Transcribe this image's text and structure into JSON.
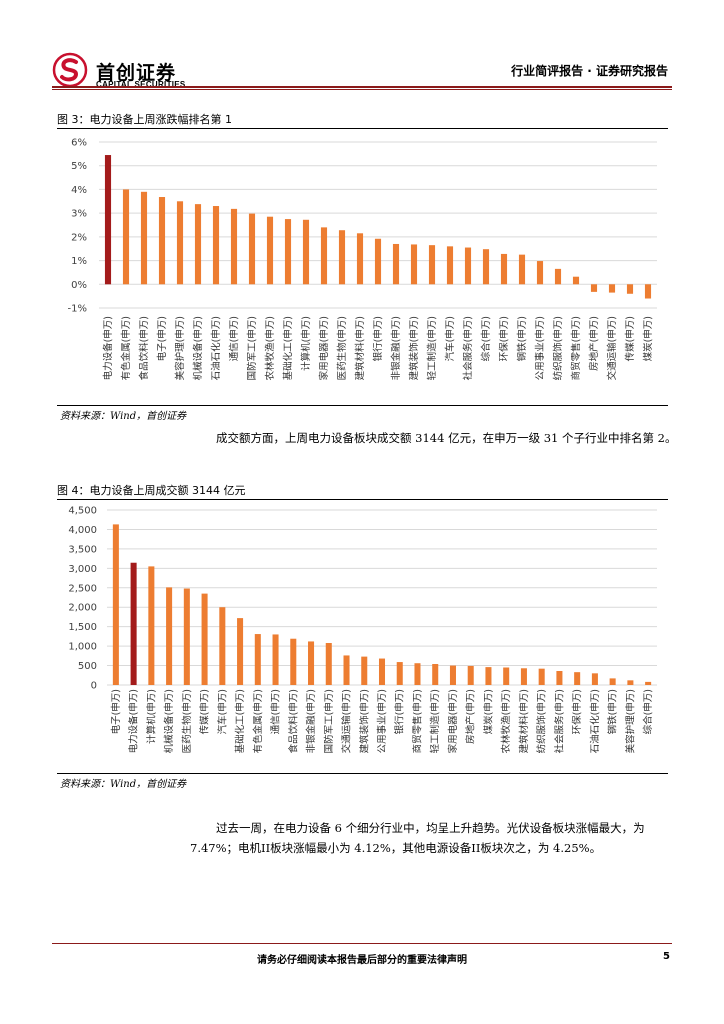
{
  "header": {
    "logo_cn": "首创证券",
    "logo_en": "CAPITAL SECURITIES",
    "report_type": "行业简评报告 · 证券研究报告"
  },
  "figure3": {
    "title": "图 3：电力设备上周涨跌幅排名第 1",
    "source": "资料来源：Wind，首创证券"
  },
  "paragraph1": "成交额方面，上周电力设备板块成交额 3144 亿元，在申万一级 31 个子行业中排名第 2。",
  "figure4": {
    "title": "图 4：电力设备上周成交额 3144 亿元",
    "source": "资料来源：Wind，首创证券"
  },
  "paragraph2": "过去一周，在电力设备 6 个细分行业中，均呈上升趋势。光伏设备板块涨幅最大，为 7.47%；电机II板块涨幅最小为 4.12%，其他电源设备II板块次之，为 4.25%。",
  "footer": {
    "disclaimer": "请务必仔细阅读本报告最后部分的重要法律声明",
    "page": "5"
  },
  "colors": {
    "highlight": "#a31b1b",
    "bar": "#ed7d31",
    "brand": "#c8102e"
  },
  "chart_data": [
    {
      "type": "bar",
      "title": "图 3：电力设备上周涨跌幅排名第 1",
      "categories": [
        "电力设备(申万)",
        "有色金属(申万)",
        "食品饮料(申万)",
        "电子(申万)",
        "美容护理(申万)",
        "机械设备(申万)",
        "石油石化(申万)",
        "通信(申万)",
        "国防军工(申万)",
        "农林牧渔(申万)",
        "基础化工(申万)",
        "计算机(申万)",
        "家用电器(申万)",
        "医药生物(申万)",
        "建筑材料(申万)",
        "银行(申万)",
        "非银金融(申万)",
        "建筑装饰(申万)",
        "轻工制造(申万)",
        "汽车(申万)",
        "社会服务(申万)",
        "综合(申万)",
        "环保(申万)",
        "钢铁(申万)",
        "公用事业(申万)",
        "纺织服饰(申万)",
        "商贸零售(申万)",
        "房地产(申万)",
        "交通运输(申万)",
        "传媒(申万)",
        "煤炭(申万)"
      ],
      "values": [
        5.45,
        4.0,
        3.9,
        3.68,
        3.5,
        3.38,
        3.3,
        3.18,
        2.98,
        2.85,
        2.75,
        2.72,
        2.4,
        2.28,
        2.15,
        1.92,
        1.7,
        1.68,
        1.65,
        1.6,
        1.55,
        1.48,
        1.28,
        1.25,
        0.98,
        0.65,
        0.32,
        -0.32,
        -0.35,
        -0.4,
        -0.6
      ],
      "highlight_index": 0,
      "y_ticks": [
        "6%",
        "5%",
        "4%",
        "3%",
        "2%",
        "1%",
        "0%",
        "-1%"
      ],
      "ylim": [
        -1,
        6
      ],
      "unit": "%"
    },
    {
      "type": "bar",
      "title": "图 4：电力设备上周成交额 3144 亿元",
      "categories": [
        "电子(申万)",
        "电力设备(申万)",
        "计算机(申万)",
        "机械设备(申万)",
        "医药生物(申万)",
        "传媒(申万)",
        "汽车(申万)",
        "基础化工(申万)",
        "有色金属(申万)",
        "通信(申万)",
        "食品饮料(申万)",
        "非银金融(申万)",
        "国防军工(申万)",
        "交通运输(申万)",
        "建筑装饰(申万)",
        "公用事业(申万)",
        "银行(申万)",
        "商贸零售(申万)",
        "轻工制造(申万)",
        "家用电器(申万)",
        "房地产(申万)",
        "煤炭(申万)",
        "农林牧渔(申万)",
        "建筑材料(申万)",
        "纺织服饰(申万)",
        "社会服务(申万)",
        "环保(申万)",
        "石油石化(申万)",
        "钢铁(申万)",
        "美容护理(申万)",
        "综合(申万)"
      ],
      "values": [
        4130,
        3144,
        3050,
        2510,
        2480,
        2350,
        2000,
        1720,
        1310,
        1300,
        1190,
        1120,
        1080,
        760,
        730,
        680,
        590,
        560,
        540,
        500,
        490,
        460,
        450,
        430,
        420,
        360,
        330,
        300,
        170,
        120,
        80
      ],
      "highlight_index": 1,
      "y_ticks": [
        "4,500",
        "4,000",
        "3,500",
        "3,000",
        "2,500",
        "2,000",
        "1,500",
        "1,000",
        "500",
        "0"
      ],
      "ylim": [
        0,
        4500
      ],
      "unit": "亿元"
    }
  ]
}
